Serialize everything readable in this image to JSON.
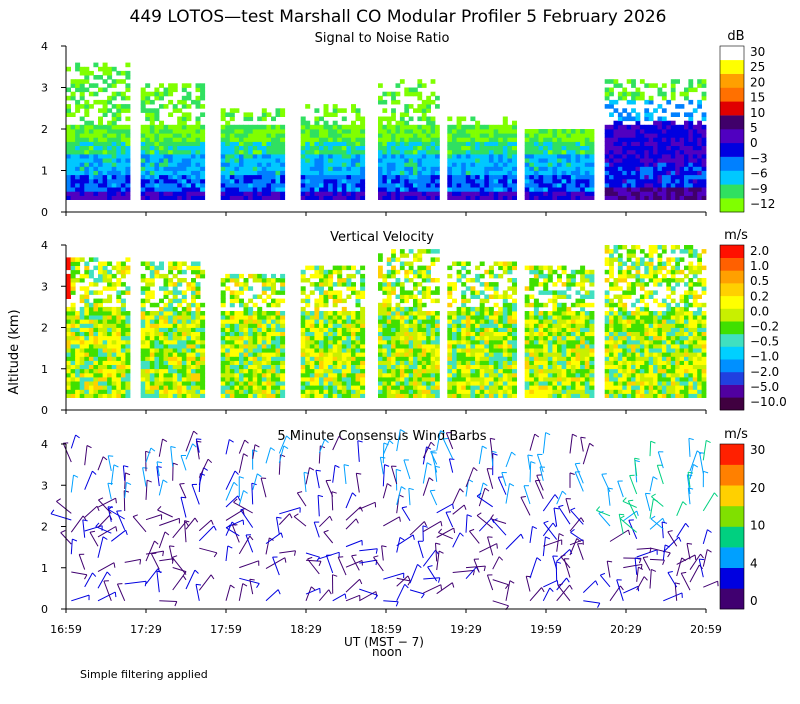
{
  "title": "449 LOTOS—test Marshall CO Modular Profiler  5 February 2026",
  "footer": "Simple filtering applied",
  "ylabel": "Altitude (km)",
  "xlabel_main": "UT  (MST − 7)",
  "xlabel_sub": "noon",
  "x_ticks": [
    "16:59",
    "17:29",
    "17:59",
    "18:29",
    "18:59",
    "19:29",
    "19:59",
    "20:29",
    "20:59"
  ],
  "y_ticks": [
    "0",
    "1",
    "2",
    "3",
    "4"
  ],
  "colors": {
    "snr": [
      "#80ff00",
      "#30e060",
      "#00c8ff",
      "#0080ff",
      "#0000e0",
      "#5000c0",
      "#40006a",
      "#e00000",
      "#ff7000",
      "#ffa000",
      "#ffff00",
      "#ffffff"
    ],
    "vv": [
      "#400040",
      "#5000a0",
      "#2040e0",
      "#0090ff",
      "#00d0ff",
      "#40e0c0",
      "#40e000",
      "#c8f000",
      "#ffff00",
      "#ffd000",
      "#ffa000",
      "#ff6000",
      "#ff1000"
    ],
    "wind": [
      "#400070",
      "#0000e0",
      "#00a0ff",
      "#00d080",
      "#80e000",
      "#ffd000",
      "#ff8000",
      "#ff2000"
    ]
  },
  "chart_data": [
    {
      "type": "heatmap",
      "title": "Signal to Noise Ratio",
      "colorbar_unit": "dB",
      "colorbar_labels": [
        "30",
        "25",
        "20",
        "15",
        "10",
        "5",
        "0",
        "−3",
        "−6",
        "−9",
        "−12"
      ],
      "xlim": [
        "16:59",
        "20:59"
      ],
      "ylim": [
        0,
        4
      ],
      "ylabel": "Altitude (km)",
      "segments": [
        {
          "start": "16:59",
          "end": "17:23",
          "top_km": 3.6
        },
        {
          "start": "17:27",
          "end": "17:51",
          "top_km": 3.1
        },
        {
          "start": "17:57",
          "end": "18:21",
          "top_km": 2.5
        },
        {
          "start": "18:27",
          "end": "18:51",
          "top_km": 2.6
        },
        {
          "start": "18:56",
          "end": "19:19",
          "top_km": 3.2
        },
        {
          "start": "19:22",
          "end": "19:48",
          "top_km": 2.3
        },
        {
          "start": "19:51",
          "end": "20:17",
          "top_km": 2.0
        },
        {
          "start": "20:21",
          "end": "20:59",
          "top_km": 3.2
        }
      ]
    },
    {
      "type": "heatmap",
      "title": "Vertical Velocity",
      "colorbar_unit": "m/s",
      "colorbar_labels": [
        "2.0",
        "1.0",
        "0.5",
        "0.2",
        "0.0",
        "−0.2",
        "−0.5",
        "−1.0",
        "−2.0",
        "−5.0",
        "−10.0"
      ],
      "xlim": [
        "16:59",
        "20:59"
      ],
      "ylim": [
        0,
        4
      ],
      "ylabel": "Altitude (km)",
      "segments": [
        {
          "start": "16:59",
          "end": "17:23",
          "top_km": 3.7
        },
        {
          "start": "17:27",
          "end": "17:51",
          "top_km": 3.6
        },
        {
          "start": "17:57",
          "end": "18:21",
          "top_km": 3.3
        },
        {
          "start": "18:27",
          "end": "18:51",
          "top_km": 3.5
        },
        {
          "start": "18:56",
          "end": "19:19",
          "top_km": 3.9
        },
        {
          "start": "19:22",
          "end": "19:48",
          "top_km": 3.6
        },
        {
          "start": "19:51",
          "end": "20:17",
          "top_km": 3.5
        },
        {
          "start": "20:21",
          "end": "20:59",
          "top_km": 4.0
        }
      ]
    },
    {
      "type": "scatter",
      "title": "5 Minute Consensus Wind Barbs",
      "colorbar_unit": "m/s",
      "colorbar_labels": [
        "30",
        "20",
        "10",
        "4",
        "0"
      ],
      "xlim": [
        "16:59",
        "20:59"
      ],
      "ylim": [
        0,
        4
      ],
      "ylabel": "Altitude (km)"
    }
  ]
}
